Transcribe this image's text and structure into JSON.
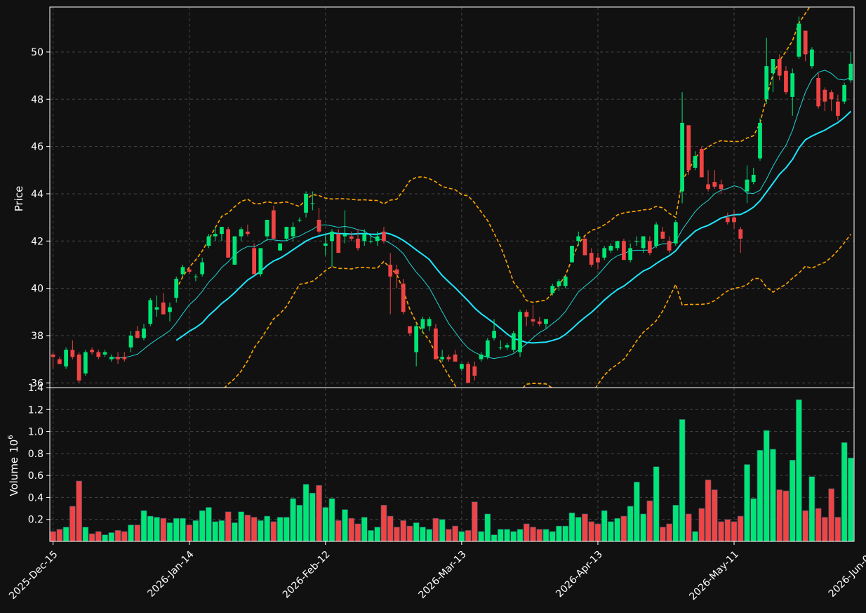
{
  "chart_data": {
    "type": "candlestick",
    "theme": {
      "background": "#111111",
      "up_color": "#00e676",
      "down_color": "#ef4444",
      "ma_fast_color": "#22d3d3",
      "ma_slow_color": "#1ee6ff",
      "band_color": "#ffa500",
      "grid_color": "#444444",
      "text_color": "#ffffff"
    },
    "price_panel": {
      "ylabel": "Price",
      "ylim": [
        35.8,
        51.9
      ],
      "yticks": [
        "36",
        "38",
        "40",
        "42",
        "44",
        "46",
        "48",
        "50"
      ]
    },
    "volume_panel": {
      "ylabel": "Volume",
      "ylabel_exp": "10",
      "ylabel_sup": "6",
      "ylim": [
        0,
        1.4
      ],
      "yticks": [
        "0.2",
        "0.4",
        "0.6",
        "0.8",
        "1.0",
        "1.2",
        "1.4"
      ]
    },
    "xticks": [
      {
        "i": 0,
        "label": "2025-Dec-15"
      },
      {
        "i": 21,
        "label": "2026-Jan-14"
      },
      {
        "i": 42,
        "label": "2026-Feb-12"
      },
      {
        "i": 63,
        "label": "2026-Mar-13"
      },
      {
        "i": 84,
        "label": "2026-Apr-13"
      },
      {
        "i": 105,
        "label": "2026-May-11"
      },
      {
        "i": 126,
        "label": "2026-Jun-09"
      }
    ],
    "ohlcv": [
      [
        37.2,
        37.3,
        36.6,
        37.1,
        0.09
      ],
      [
        37.0,
        37.1,
        36.8,
        36.8,
        0.11
      ],
      [
        36.7,
        37.5,
        36.6,
        37.4,
        0.13
      ],
      [
        37.4,
        37.8,
        37.0,
        37.1,
        0.32
      ],
      [
        37.2,
        37.3,
        36.0,
        36.1,
        0.55
      ],
      [
        36.4,
        37.4,
        36.3,
        37.3,
        0.13
      ],
      [
        37.4,
        37.5,
        37.2,
        37.3,
        0.07
      ],
      [
        37.3,
        37.4,
        37.0,
        37.1,
        0.09
      ],
      [
        37.2,
        37.4,
        37.1,
        37.3,
        0.06
      ],
      [
        37.0,
        37.2,
        36.9,
        37.1,
        0.08
      ],
      [
        37.1,
        37.3,
        36.8,
        37.0,
        0.1
      ],
      [
        37.1,
        37.3,
        36.9,
        37.0,
        0.09
      ],
      [
        37.5,
        38.2,
        37.3,
        38.0,
        0.15
      ],
      [
        38.2,
        38.4,
        37.9,
        37.9,
        0.15
      ],
      [
        37.9,
        38.5,
        37.8,
        38.3,
        0.28
      ],
      [
        38.5,
        39.6,
        38.4,
        39.5,
        0.23
      ],
      [
        39.1,
        39.7,
        38.8,
        39.2,
        0.22
      ],
      [
        39.4,
        39.8,
        38.9,
        38.9,
        0.21
      ],
      [
        39.0,
        39.4,
        38.6,
        39.2,
        0.17
      ],
      [
        39.6,
        40.5,
        39.4,
        40.4,
        0.21
      ],
      [
        40.6,
        41.0,
        40.5,
        40.9,
        0.21
      ],
      [
        40.8,
        40.9,
        40.6,
        40.7,
        0.15
      ],
      [
        40.5,
        40.6,
        40.3,
        40.5,
        0.19
      ],
      [
        40.6,
        41.3,
        40.5,
        41.1,
        0.28
      ],
      [
        41.8,
        42.3,
        41.7,
        42.2,
        0.31
      ],
      [
        42.2,
        42.6,
        42.0,
        42.3,
        0.18
      ],
      [
        42.3,
        42.6,
        42.0,
        42.6,
        0.19
      ],
      [
        42.5,
        42.6,
        41.4,
        41.3,
        0.27
      ],
      [
        41.0,
        42.1,
        41.0,
        42.2,
        0.17
      ],
      [
        42.2,
        42.6,
        42.0,
        42.5,
        0.27
      ],
      [
        42.4,
        42.7,
        42.2,
        42.3,
        0.24
      ],
      [
        41.7,
        41.9,
        40.6,
        40.6,
        0.22
      ],
      [
        40.6,
        41.5,
        40.5,
        41.7,
        0.19
      ],
      [
        42.2,
        42.9,
        42.0,
        42.9,
        0.23
      ],
      [
        43.3,
        43.5,
        42.1,
        42.1,
        0.18
      ],
      [
        41.6,
        41.9,
        41.6,
        41.9,
        0.22
      ],
      [
        42.1,
        42.6,
        42.0,
        42.6,
        0.22
      ],
      [
        42.2,
        42.8,
        42.0,
        42.6,
        0.39
      ],
      [
        42.9,
        43.0,
        42.8,
        42.9,
        0.33
      ],
      [
        43.2,
        44.1,
        43.0,
        44.0,
        0.52
      ],
      [
        43.6,
        44.1,
        43.3,
        43.6,
        0.44
      ],
      [
        42.9,
        43.4,
        42.3,
        42.4,
        0.51
      ],
      [
        41.8,
        42.3,
        41.4,
        41.9,
        0.31
      ],
      [
        42.0,
        42.5,
        40.9,
        42.4,
        0.39
      ],
      [
        42.3,
        42.5,
        41.5,
        41.5,
        0.19
      ],
      [
        42.2,
        43.3,
        41.9,
        42.3,
        0.29
      ],
      [
        42.2,
        42.4,
        42.0,
        42.1,
        0.21
      ],
      [
        42.1,
        42.5,
        41.6,
        41.7,
        0.16
      ],
      [
        42.0,
        42.5,
        41.8,
        42.3,
        0.22
      ],
      [
        42.0,
        42.3,
        41.9,
        42.0,
        0.1
      ],
      [
        42.0,
        42.4,
        41.8,
        42.2,
        0.13
      ],
      [
        42.4,
        42.6,
        41.9,
        42.0,
        0.33
      ],
      [
        41.0,
        41.5,
        38.9,
        40.5,
        0.23
      ],
      [
        40.8,
        41.0,
        40.0,
        40.6,
        0.13
      ],
      [
        40.2,
        40.4,
        38.9,
        39.0,
        0.19
      ],
      [
        38.4,
        38.4,
        38.0,
        38.1,
        0.14
      ],
      [
        37.3,
        38.5,
        36.7,
        38.4,
        0.17
      ],
      [
        38.3,
        38.8,
        38.1,
        38.7,
        0.13
      ],
      [
        38.4,
        38.8,
        38.2,
        38.7,
        0.11
      ],
      [
        38.3,
        38.5,
        37.0,
        37.0,
        0.21
      ],
      [
        37.0,
        37.4,
        36.9,
        37.1,
        0.2
      ],
      [
        37.1,
        37.2,
        36.9,
        37.0,
        0.11
      ],
      [
        37.2,
        37.4,
        36.9,
        36.9,
        0.14
      ],
      [
        36.6,
        36.8,
        36.5,
        36.8,
        0.09
      ],
      [
        36.8,
        36.9,
        36.0,
        36.0,
        0.1
      ],
      [
        36.7,
        36.9,
        36.1,
        36.3,
        0.36
      ],
      [
        37.0,
        37.3,
        36.9,
        37.2,
        0.09
      ],
      [
        37.1,
        37.9,
        37.0,
        37.8,
        0.25
      ],
      [
        37.9,
        38.7,
        37.8,
        38.2,
        0.06
      ],
      [
        37.5,
        37.8,
        37.4,
        37.5,
        0.11
      ],
      [
        37.5,
        37.7,
        37.4,
        37.6,
        0.11
      ],
      [
        37.4,
        38.2,
        37.3,
        38.1,
        0.09
      ],
      [
        37.3,
        39.1,
        37.1,
        39.0,
        0.11
      ],
      [
        39.0,
        39.1,
        38.4,
        38.8,
        0.16
      ],
      [
        38.7,
        39.3,
        38.4,
        38.6,
        0.13
      ],
      [
        38.6,
        38.8,
        38.4,
        38.5,
        0.11
      ],
      [
        38.5,
        38.7,
        38.3,
        38.7,
        0.11
      ],
      [
        39.8,
        40.2,
        39.7,
        40.1,
        0.09
      ],
      [
        40.1,
        40.4,
        39.9,
        40.3,
        0.14
      ],
      [
        40.1,
        40.5,
        40.0,
        40.5,
        0.14
      ],
      [
        41.1,
        41.8,
        41.1,
        41.8,
        0.26
      ],
      [
        42.0,
        42.4,
        41.8,
        42.2,
        0.22
      ],
      [
        42.1,
        42.2,
        41.5,
        41.4,
        0.25
      ],
      [
        41.5,
        41.7,
        40.9,
        41.0,
        0.18
      ],
      [
        41.3,
        41.5,
        40.8,
        41.1,
        0.16
      ],
      [
        41.3,
        41.8,
        41.2,
        41.7,
        0.28
      ],
      [
        41.6,
        41.9,
        41.5,
        41.8,
        0.18
      ],
      [
        41.7,
        42.0,
        41.6,
        42.0,
        0.21
      ],
      [
        42.0,
        42.1,
        41.2,
        41.2,
        0.23
      ],
      [
        41.2,
        41.9,
        41.1,
        41.7,
        0.32
      ],
      [
        42.0,
        42.2,
        41.8,
        42.0,
        0.54
      ],
      [
        41.7,
        42.2,
        41.5,
        42.2,
        0.25
      ],
      [
        42.0,
        42.2,
        41.4,
        41.5,
        0.37
      ],
      [
        41.8,
        42.8,
        41.7,
        42.7,
        0.68
      ],
      [
        42.4,
        42.6,
        42.1,
        42.1,
        0.13
      ],
      [
        42.0,
        42.2,
        41.5,
        41.6,
        0.16
      ],
      [
        41.9,
        42.9,
        41.8,
        42.8,
        0.33
      ],
      [
        44.1,
        48.3,
        43.6,
        47.0,
        1.11
      ],
      [
        46.9,
        46.9,
        44.8,
        45.0,
        0.25
      ],
      [
        45.1,
        45.8,
        45.0,
        45.6,
        0.09
      ],
      [
        45.9,
        46.0,
        44.7,
        44.7,
        0.3
      ],
      [
        44.4,
        45.0,
        44.1,
        44.2,
        0.56
      ],
      [
        44.5,
        45.0,
        44.2,
        44.3,
        0.47
      ],
      [
        44.4,
        44.6,
        44.0,
        44.2,
        0.18
      ],
      [
        43.0,
        43.2,
        42.7,
        42.8,
        0.2
      ],
      [
        43.0,
        43.3,
        42.5,
        42.8,
        0.18
      ],
      [
        42.5,
        42.6,
        41.5,
        42.1,
        0.23
      ],
      [
        44.1,
        45.2,
        43.6,
        44.6,
        0.7
      ],
      [
        44.5,
        45.1,
        44.4,
        44.8,
        0.39
      ],
      [
        45.5,
        47.2,
        45.4,
        47.0,
        0.83
      ],
      [
        48.0,
        50.6,
        47.8,
        49.4,
        1.01
      ],
      [
        49.1,
        49.7,
        48.3,
        49.7,
        0.84
      ],
      [
        49.7,
        49.9,
        48.8,
        49.0,
        0.47
      ],
      [
        49.2,
        49.4,
        48.2,
        48.3,
        0.46
      ],
      [
        48.1,
        49.3,
        47.3,
        49.1,
        0.74
      ],
      [
        49.8,
        51.5,
        49.7,
        51.2,
        1.29
      ],
      [
        50.9,
        50.9,
        49.6,
        49.9,
        0.28
      ],
      [
        49.4,
        50.2,
        49.3,
        50.1,
        0.59
      ],
      [
        48.9,
        49.1,
        47.6,
        47.7,
        0.3
      ],
      [
        48.4,
        48.5,
        47.5,
        47.9,
        0.22
      ],
      [
        48.3,
        48.4,
        47.5,
        48.0,
        0.48
      ],
      [
        47.9,
        48.2,
        47.1,
        47.3,
        0.22
      ],
      [
        47.9,
        48.7,
        47.8,
        48.6,
        0.9
      ],
      [
        48.8,
        50.0,
        48.7,
        49.5,
        0.76
      ]
    ]
  }
}
